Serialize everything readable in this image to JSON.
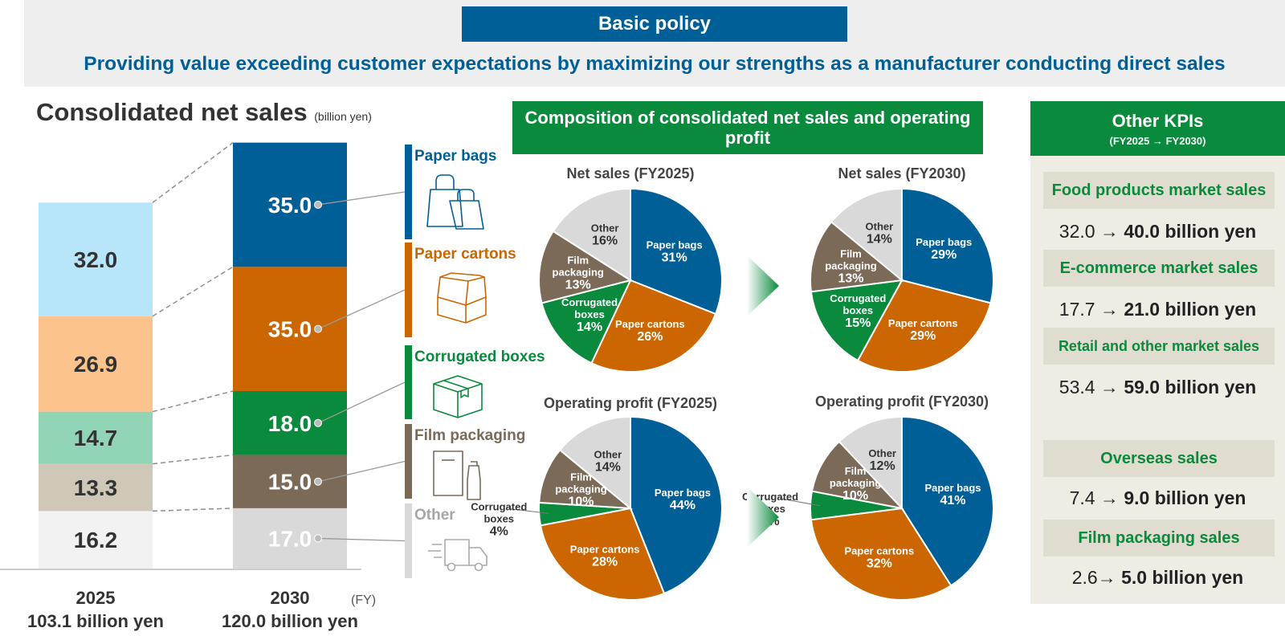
{
  "header": {
    "policy_label": "Basic policy",
    "policy_text": "Providing value exceeding customer expectations by maximizing our strengths as a manufacturer conducting direct sales"
  },
  "left_title": {
    "main": "Consolidated net sales",
    "unit": "(billion yen)"
  },
  "composition_title": {
    "line1": "Composition of consolidated net sales and operating",
    "line2": "profit"
  },
  "colors": {
    "paper_bags": "#015f97",
    "paper_cartons": "#cc6600",
    "corrugated_boxes": "#0a8a3c",
    "film_packaging": "#7b6a58",
    "other": "#d9d9d9",
    "bar2025": [
      "#b7e6fb",
      "#fcc38d",
      "#92d5b6",
      "#cfc8b9",
      "#f2f2f2"
    ]
  },
  "legend": [
    {
      "label": "Paper bags",
      "icon": "shopping-bags-icon"
    },
    {
      "label": "Paper cartons",
      "icon": "open-carton-icon"
    },
    {
      "label": "Corrugated boxes",
      "icon": "cardboard-box-icon"
    },
    {
      "label": "Film packaging",
      "icon": "film-bag-icon"
    },
    {
      "label": "Other",
      "icon": "delivery-truck-icon"
    }
  ],
  "chart_data": [
    {
      "type": "bar",
      "title": "Consolidated net sales",
      "unit": "(billion yen)",
      "categories": [
        "2025",
        "2030"
      ],
      "axis_label": "(FY)",
      "totals": [
        "103.1 billion yen",
        "120.0 billion yen"
      ],
      "series": [
        {
          "name": "Paper bags",
          "values": [
            32.0,
            35.0
          ]
        },
        {
          "name": "Paper cartons",
          "values": [
            26.9,
            35.0
          ]
        },
        {
          "name": "Corrugated boxes",
          "values": [
            14.7,
            18.0
          ]
        },
        {
          "name": "Film packaging",
          "values": [
            13.3,
            15.0
          ]
        },
        {
          "name": "Other",
          "values": [
            16.2,
            17.0
          ]
        }
      ],
      "value_labels": [
        [
          "32.0",
          "35.0"
        ],
        [
          "26.9",
          "35.0"
        ],
        [
          "14.7",
          "18.0"
        ],
        [
          "13.3",
          "15.0"
        ],
        [
          "16.2",
          "17.0"
        ]
      ]
    },
    {
      "type": "pie",
      "title": "Net sales (FY2025)",
      "slices": [
        {
          "lines": [
            "Paper bags"
          ],
          "value": 31
        },
        {
          "lines": [
            "Paper cartons"
          ],
          "value": 26
        },
        {
          "lines": [
            "Corrugated",
            "boxes"
          ],
          "value": 14
        },
        {
          "lines": [
            "Film",
            "packaging"
          ],
          "value": 13
        },
        {
          "lines": [
            "Other"
          ],
          "value": 16
        }
      ]
    },
    {
      "type": "pie",
      "title": "Net sales (FY2030)",
      "slices": [
        {
          "lines": [
            "Paper bags"
          ],
          "value": 29
        },
        {
          "lines": [
            "Paper cartons"
          ],
          "value": 29
        },
        {
          "lines": [
            "Corrugated",
            "boxes"
          ],
          "value": 15
        },
        {
          "lines": [
            "Film",
            "packaging"
          ],
          "value": 13
        },
        {
          "lines": [
            "Other"
          ],
          "value": 14
        }
      ]
    },
    {
      "type": "pie",
      "title": "Operating profit (FY2025)",
      "slices": [
        {
          "lines": [
            "Paper bags"
          ],
          "value": 44
        },
        {
          "lines": [
            "Paper cartons"
          ],
          "value": 28
        },
        {
          "lines": [
            "Corrugated",
            "boxes"
          ],
          "value": 4
        },
        {
          "lines": [
            "Film",
            "packaging"
          ],
          "value": 10
        },
        {
          "lines": [
            "Other"
          ],
          "value": 14
        }
      ]
    },
    {
      "type": "pie",
      "title": "Operating profit (FY2030)",
      "slices": [
        {
          "lines": [
            "Paper bags"
          ],
          "value": 41
        },
        {
          "lines": [
            "Paper cartons"
          ],
          "value": 32
        },
        {
          "lines": [
            "Corrugated",
            "boxes"
          ],
          "value": 5
        },
        {
          "lines": [
            "Film",
            "packaging"
          ],
          "value": 10
        },
        {
          "lines": [
            "Other"
          ],
          "value": 12
        }
      ]
    }
  ],
  "kpis": {
    "title": "Other KPIs",
    "subtitle": "(FY2025 → FY2030)",
    "items": [
      {
        "label": "Food products market sales",
        "from": "32.0 →",
        "to": "40.0 billion yen"
      },
      {
        "label": "E-commerce market sales",
        "from": "17.7 →",
        "to": "21.0 billion yen"
      },
      {
        "label": "Retail and other market sales",
        "from": "53.4 →",
        "to": "59.0 billion yen"
      },
      {
        "label": "Overseas sales",
        "from": "7.4 →",
        "to": "9.0 billion yen"
      },
      {
        "label": "Film packaging sales",
        "from": "2.6→",
        "to": "5.0 billion yen"
      }
    ]
  }
}
